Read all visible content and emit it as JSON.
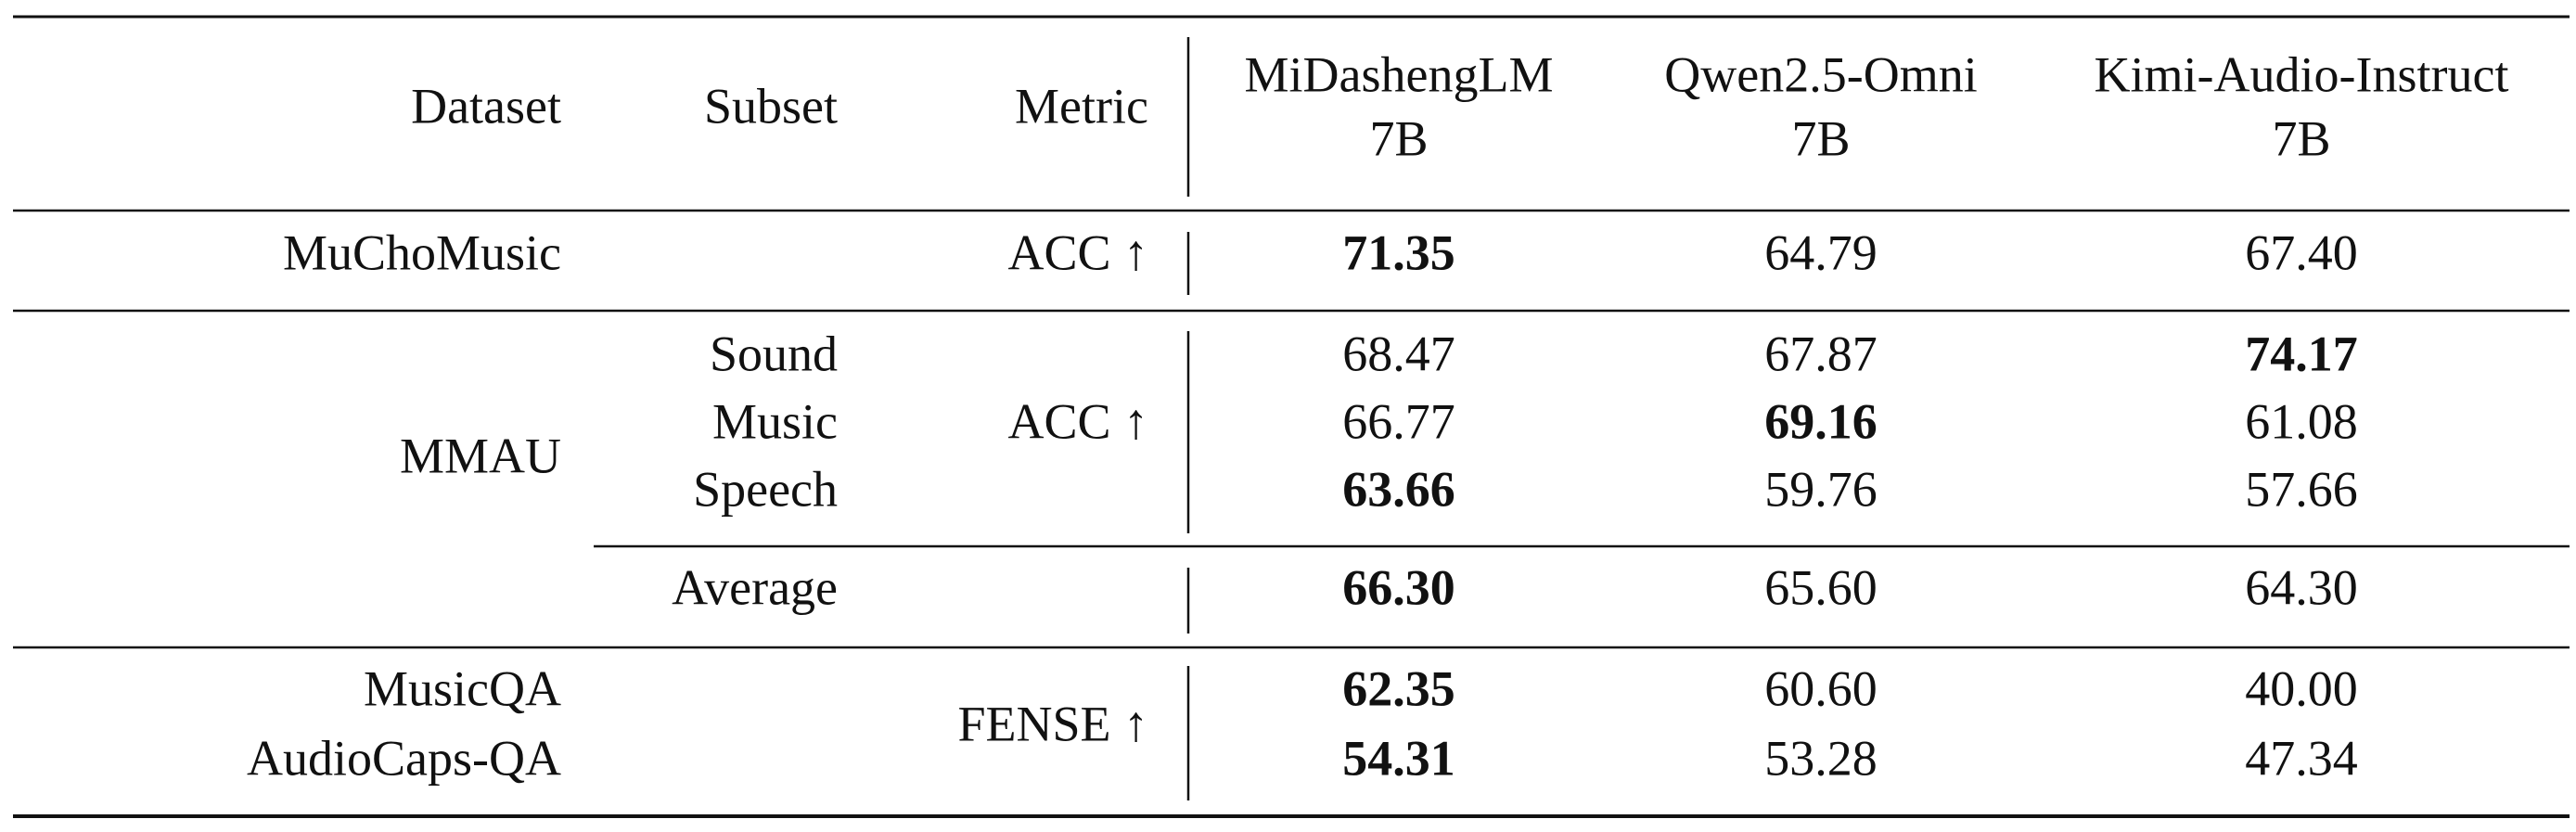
{
  "header": {
    "dataset": "Dataset",
    "subset": "Subset",
    "metric": "Metric",
    "models": [
      {
        "name": "MiDashengLM",
        "size": "7B"
      },
      {
        "name": "Qwen2.5-Omni",
        "size": "7B"
      },
      {
        "name": "Kimi-Audio-Instruct",
        "size": "7B"
      }
    ]
  },
  "sections": [
    {
      "datasets": [
        "MuChoMusic"
      ],
      "metric": "ACC ↑",
      "rows": [
        {
          "scores": [
            {
              "value": "71.35",
              "bold": true
            },
            {
              "value": "64.79",
              "bold": false
            },
            {
              "value": "67.40",
              "bold": false
            }
          ]
        }
      ]
    },
    {
      "datasets": [
        "MMAU"
      ],
      "metric": "ACC ↑",
      "rows": [
        {
          "subset": "Sound",
          "scores": [
            {
              "value": "68.47",
              "bold": false
            },
            {
              "value": "67.87",
              "bold": false
            },
            {
              "value": "74.17",
              "bold": true
            }
          ]
        },
        {
          "subset": "Music",
          "scores": [
            {
              "value": "66.77",
              "bold": false
            },
            {
              "value": "69.16",
              "bold": true
            },
            {
              "value": "61.08",
              "bold": false
            }
          ]
        },
        {
          "subset": "Speech",
          "scores": [
            {
              "value": "63.66",
              "bold": true
            },
            {
              "value": "59.76",
              "bold": false
            },
            {
              "value": "57.66",
              "bold": false
            }
          ]
        }
      ],
      "average": {
        "subset": "Average",
        "scores": [
          {
            "value": "66.30",
            "bold": true
          },
          {
            "value": "65.60",
            "bold": false
          },
          {
            "value": "64.30",
            "bold": false
          }
        ]
      }
    },
    {
      "datasets": [
        "MusicQA",
        "AudioCaps-QA"
      ],
      "metric": "FENSE ↑",
      "rows": [
        {
          "scores": [
            {
              "value": "62.35",
              "bold": true
            },
            {
              "value": "60.60",
              "bold": false
            },
            {
              "value": "40.00",
              "bold": false
            }
          ]
        },
        {
          "scores": [
            {
              "value": "54.31",
              "bold": true
            },
            {
              "value": "53.28",
              "bold": false
            },
            {
              "value": "47.34",
              "bold": false
            }
          ]
        }
      ]
    }
  ]
}
